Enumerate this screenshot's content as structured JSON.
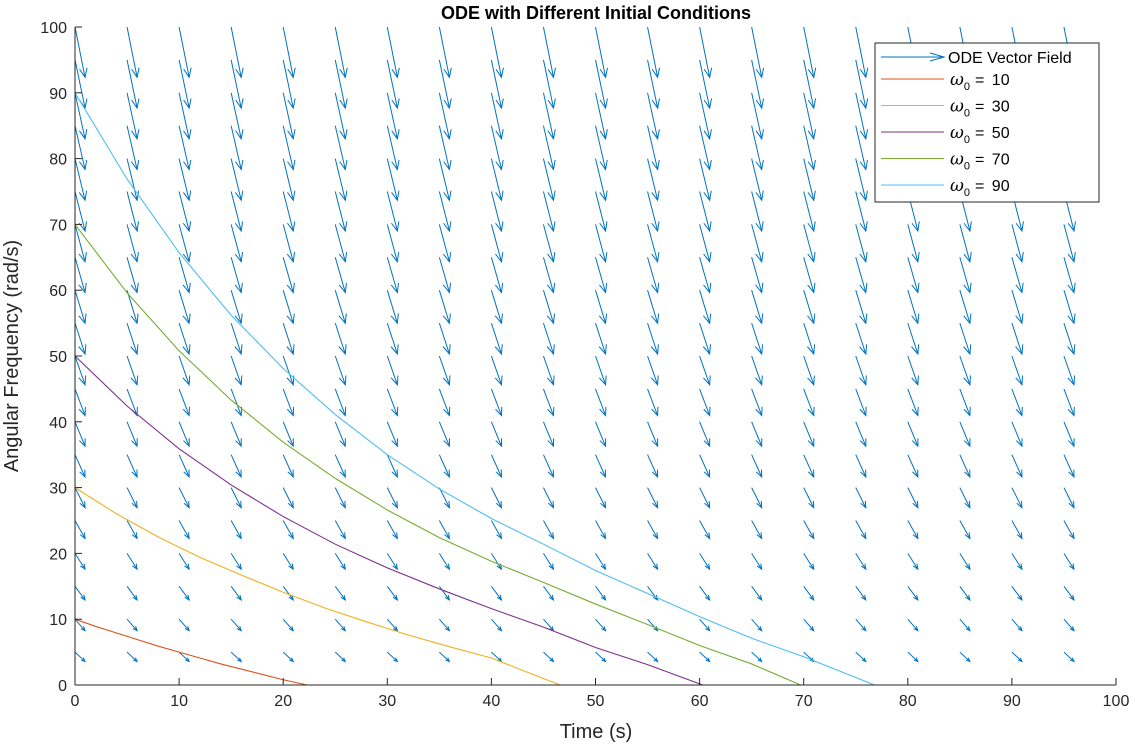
{
  "chart_data": {
    "type": "line",
    "title": "ODE with Different Initial Conditions",
    "xlabel": "Time (s)",
    "ylabel": "Angular Frequency (rad/s)",
    "xlim": [
      0,
      100
    ],
    "ylim": [
      0,
      100
    ],
    "xticks": [
      0,
      10,
      20,
      30,
      40,
      50,
      60,
      70,
      80,
      90,
      100
    ],
    "yticks": [
      0,
      10,
      20,
      30,
      40,
      50,
      60,
      70,
      80,
      90,
      100
    ],
    "grid": false,
    "legend_position": "top-right",
    "vector_field": {
      "name": "ODE Vector Field",
      "color": "#0072BD",
      "t_values": [
        0,
        5,
        10,
        15,
        20,
        25,
        30,
        35,
        40,
        45,
        50,
        55,
        60,
        65,
        70,
        75,
        80,
        85,
        90,
        95
      ],
      "w_values": [
        5,
        10,
        15,
        20,
        25,
        30,
        35,
        40,
        45,
        50,
        55,
        60,
        65,
        70,
        75,
        80,
        85,
        90,
        95,
        100
      ],
      "decay_rate": 0.03,
      "constant_term": 0.5
    },
    "series": [
      {
        "name": "ω0 = 10",
        "symbol": "ω",
        "subscript": "0",
        "value_label": "10",
        "color": "#D95319",
        "x": [
          0,
          2,
          4,
          6,
          8,
          10,
          12,
          14,
          16,
          18,
          20,
          22.3
        ],
        "y": [
          10,
          8.9,
          7.9,
          6.9,
          5.9,
          5.0,
          4.1,
          3.2,
          2.4,
          1.6,
          0.8,
          0
        ]
      },
      {
        "name": "ω0 = 30",
        "symbol": "ω",
        "subscript": "0",
        "value_label": "30",
        "color": "#EDB120",
        "x": [
          0,
          4,
          8,
          12,
          16,
          20,
          24,
          28,
          32,
          36,
          40,
          44,
          46.6
        ],
        "y": [
          30,
          26.0,
          22.5,
          19.4,
          16.7,
          14.1,
          11.7,
          9.6,
          7.6,
          5.8,
          4.1,
          1.6,
          0
        ]
      },
      {
        "name": "ω0 = 50",
        "symbol": "ω",
        "subscript": "0",
        "value_label": "50",
        "color": "#7E2F8E",
        "x": [
          0,
          5,
          10,
          15,
          20,
          25,
          30,
          35,
          40,
          45,
          50,
          55,
          60.3
        ],
        "y": [
          50,
          42.4,
          35.9,
          30.4,
          25.6,
          21.4,
          17.8,
          14.6,
          11.6,
          8.8,
          5.7,
          3.1,
          0
        ]
      },
      {
        "name": "ω0 = 70",
        "symbol": "ω",
        "subscript": "0",
        "value_label": "70",
        "color": "#77AC30",
        "x": [
          0,
          5,
          10,
          15,
          20,
          25,
          30,
          35,
          40,
          45,
          50,
          55,
          60,
          65,
          69.7
        ],
        "y": [
          70,
          59.6,
          50.8,
          43.3,
          36.9,
          31.4,
          26.6,
          22.4,
          18.8,
          15.6,
          12.3,
          9.2,
          6.0,
          3.2,
          0
        ]
      },
      {
        "name": "ω0 = 90",
        "symbol": "ω",
        "subscript": "0",
        "value_label": "90",
        "color": "#4DBEEE",
        "x": [
          0,
          5,
          10,
          15,
          20,
          25,
          30,
          35,
          40,
          45,
          50,
          55,
          60,
          65,
          70,
          76.8
        ],
        "y": [
          90,
          76.9,
          65.7,
          56.2,
          48.1,
          41.1,
          35.0,
          29.8,
          25.3,
          21.4,
          17.4,
          13.9,
          10.4,
          7.1,
          4.3,
          0
        ]
      }
    ]
  }
}
